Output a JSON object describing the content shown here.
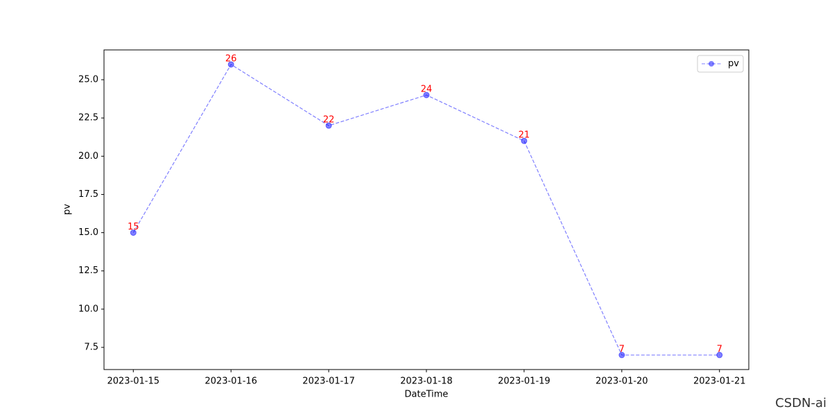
{
  "chart_data": {
    "type": "line",
    "categories": [
      "2023-01-15",
      "2023-01-16",
      "2023-01-17",
      "2023-01-18",
      "2023-01-19",
      "2023-01-20",
      "2023-01-21"
    ],
    "series": [
      {
        "name": "pv",
        "color": "#0000ff",
        "values": [
          15,
          26,
          22,
          24,
          21,
          7,
          7
        ]
      }
    ],
    "x_label": "DateTime",
    "y_label": "pv",
    "ylim": [
      6.05,
      26.95
    ],
    "yticks": [
      7.5,
      {
        "value": 10,
        "label": "10.0"
      },
      12.5,
      {
        "value": 15,
        "label": "15.0"
      },
      17.5,
      {
        "value": 20,
        "label": "20.0"
      },
      22.5,
      {
        "value": 25,
        "label": "25.0"
      }
    ],
    "value_label_color": "#ff0000",
    "grid": false,
    "legend": "upper right",
    "watermark": "CSDN-ai"
  }
}
